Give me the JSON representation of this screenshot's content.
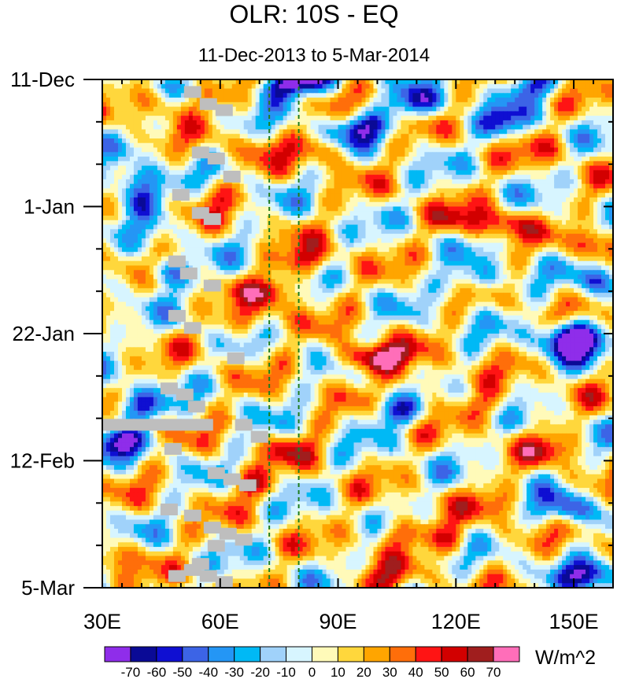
{
  "chart_data": {
    "type": "heatmap",
    "title": "OLR: 10S - EQ",
    "subtitle": "11-Dec-2013 to 5-Mar-2014",
    "xlabel": "",
    "ylabel": "",
    "x_range": [
      30,
      160
    ],
    "x_ticks": [
      30,
      60,
      90,
      120,
      150
    ],
    "x_tick_labels": [
      "30E",
      "60E",
      "90E",
      "120E",
      "150E"
    ],
    "y_range_days": [
      0,
      84
    ],
    "y_ticks_days": [
      0,
      21,
      42,
      63,
      84
    ],
    "y_tick_labels": [
      "11-Dec",
      "1-Jan",
      "22-Jan",
      "12-Feb",
      "5-Mar"
    ],
    "reference_lines_lon": [
      72.5,
      80
    ],
    "colorbar": {
      "unit": "W/m^2",
      "levels": [
        -70,
        -60,
        -50,
        -40,
        -30,
        -20,
        -10,
        0,
        10,
        20,
        30,
        40,
        50,
        60,
        70
      ],
      "level_labels": [
        "-70",
        "-60",
        "-50",
        "-40",
        "-30",
        "-20",
        "-10",
        "0",
        "10",
        "20",
        "30",
        "40",
        "50",
        "60",
        "70"
      ],
      "colors": [
        "#8f2dea",
        "#0a0a96",
        "#0f0fd2",
        "#3c64e6",
        "#2496f5",
        "#00b9f5",
        "#a0d2fa",
        "#d7f5ff",
        "#fffab9",
        "#ffd73c",
        "#ffa500",
        "#ff6e0a",
        "#ff1414",
        "#d20000",
        "#a01e1e",
        "#ff6eb9"
      ]
    },
    "features": [
      {
        "lon": 82,
        "day": 0,
        "value": -70
      },
      {
        "lon": 75,
        "day": 1,
        "value": -50
      },
      {
        "lon": 96,
        "day": 8,
        "value": -55
      },
      {
        "lon": 110,
        "day": 4,
        "value": -50
      },
      {
        "lon": 139,
        "day": 1,
        "value": -50
      },
      {
        "lon": 38,
        "day": 17,
        "value": -55
      },
      {
        "lon": 40,
        "day": 20,
        "value": -45
      },
      {
        "lon": 46,
        "day": 32,
        "value": -45
      },
      {
        "lon": 38,
        "day": 54,
        "value": -60
      },
      {
        "lon": 34,
        "day": 60,
        "value": -55
      },
      {
        "lon": 150,
        "day": 44,
        "value": -60
      },
      {
        "lon": 149,
        "day": 42,
        "value": -60
      },
      {
        "lon": 158,
        "day": 33,
        "value": -45
      },
      {
        "lon": 132,
        "day": 7,
        "value": -45
      },
      {
        "lon": 125,
        "day": 33,
        "value": -45
      },
      {
        "lon": 148,
        "day": 71,
        "value": -55
      },
      {
        "lon": 154,
        "day": 82,
        "value": -60
      },
      {
        "lon": 105,
        "day": 55,
        "value": -45
      },
      {
        "lon": 45,
        "day": 4,
        "value": 35
      },
      {
        "lon": 56,
        "day": 3,
        "value": 30
      },
      {
        "lon": 58,
        "day": 19,
        "value": 25
      },
      {
        "lon": 71,
        "day": 11,
        "value": 25
      },
      {
        "lon": 86,
        "day": 12,
        "value": 35
      },
      {
        "lon": 82,
        "day": 30,
        "value": 50
      },
      {
        "lon": 74,
        "day": 35,
        "value": 55
      },
      {
        "lon": 68,
        "day": 40,
        "value": 40
      },
      {
        "lon": 95,
        "day": 46,
        "value": 55
      },
      {
        "lon": 103,
        "day": 46,
        "value": 55
      },
      {
        "lon": 112,
        "day": 50,
        "value": 35
      },
      {
        "lon": 131,
        "day": 24,
        "value": 55
      },
      {
        "lon": 120,
        "day": 23,
        "value": 35
      },
      {
        "lon": 128,
        "day": 54,
        "value": 40
      },
      {
        "lon": 145,
        "day": 61,
        "value": 40
      },
      {
        "lon": 105,
        "day": 75,
        "value": 50
      },
      {
        "lon": 118,
        "day": 76,
        "value": 40
      },
      {
        "lon": 130,
        "day": 70,
        "value": 35
      },
      {
        "lon": 33,
        "day": 79,
        "value": 35
      },
      {
        "lon": 68,
        "day": 67,
        "value": 40
      },
      {
        "lon": 80,
        "day": 61,
        "value": 35
      },
      {
        "lon": 157,
        "day": 27,
        "value": 50
      },
      {
        "lon": 142,
        "day": 12,
        "value": 25
      },
      {
        "lon": 100,
        "day": 83,
        "value": 40
      }
    ]
  }
}
